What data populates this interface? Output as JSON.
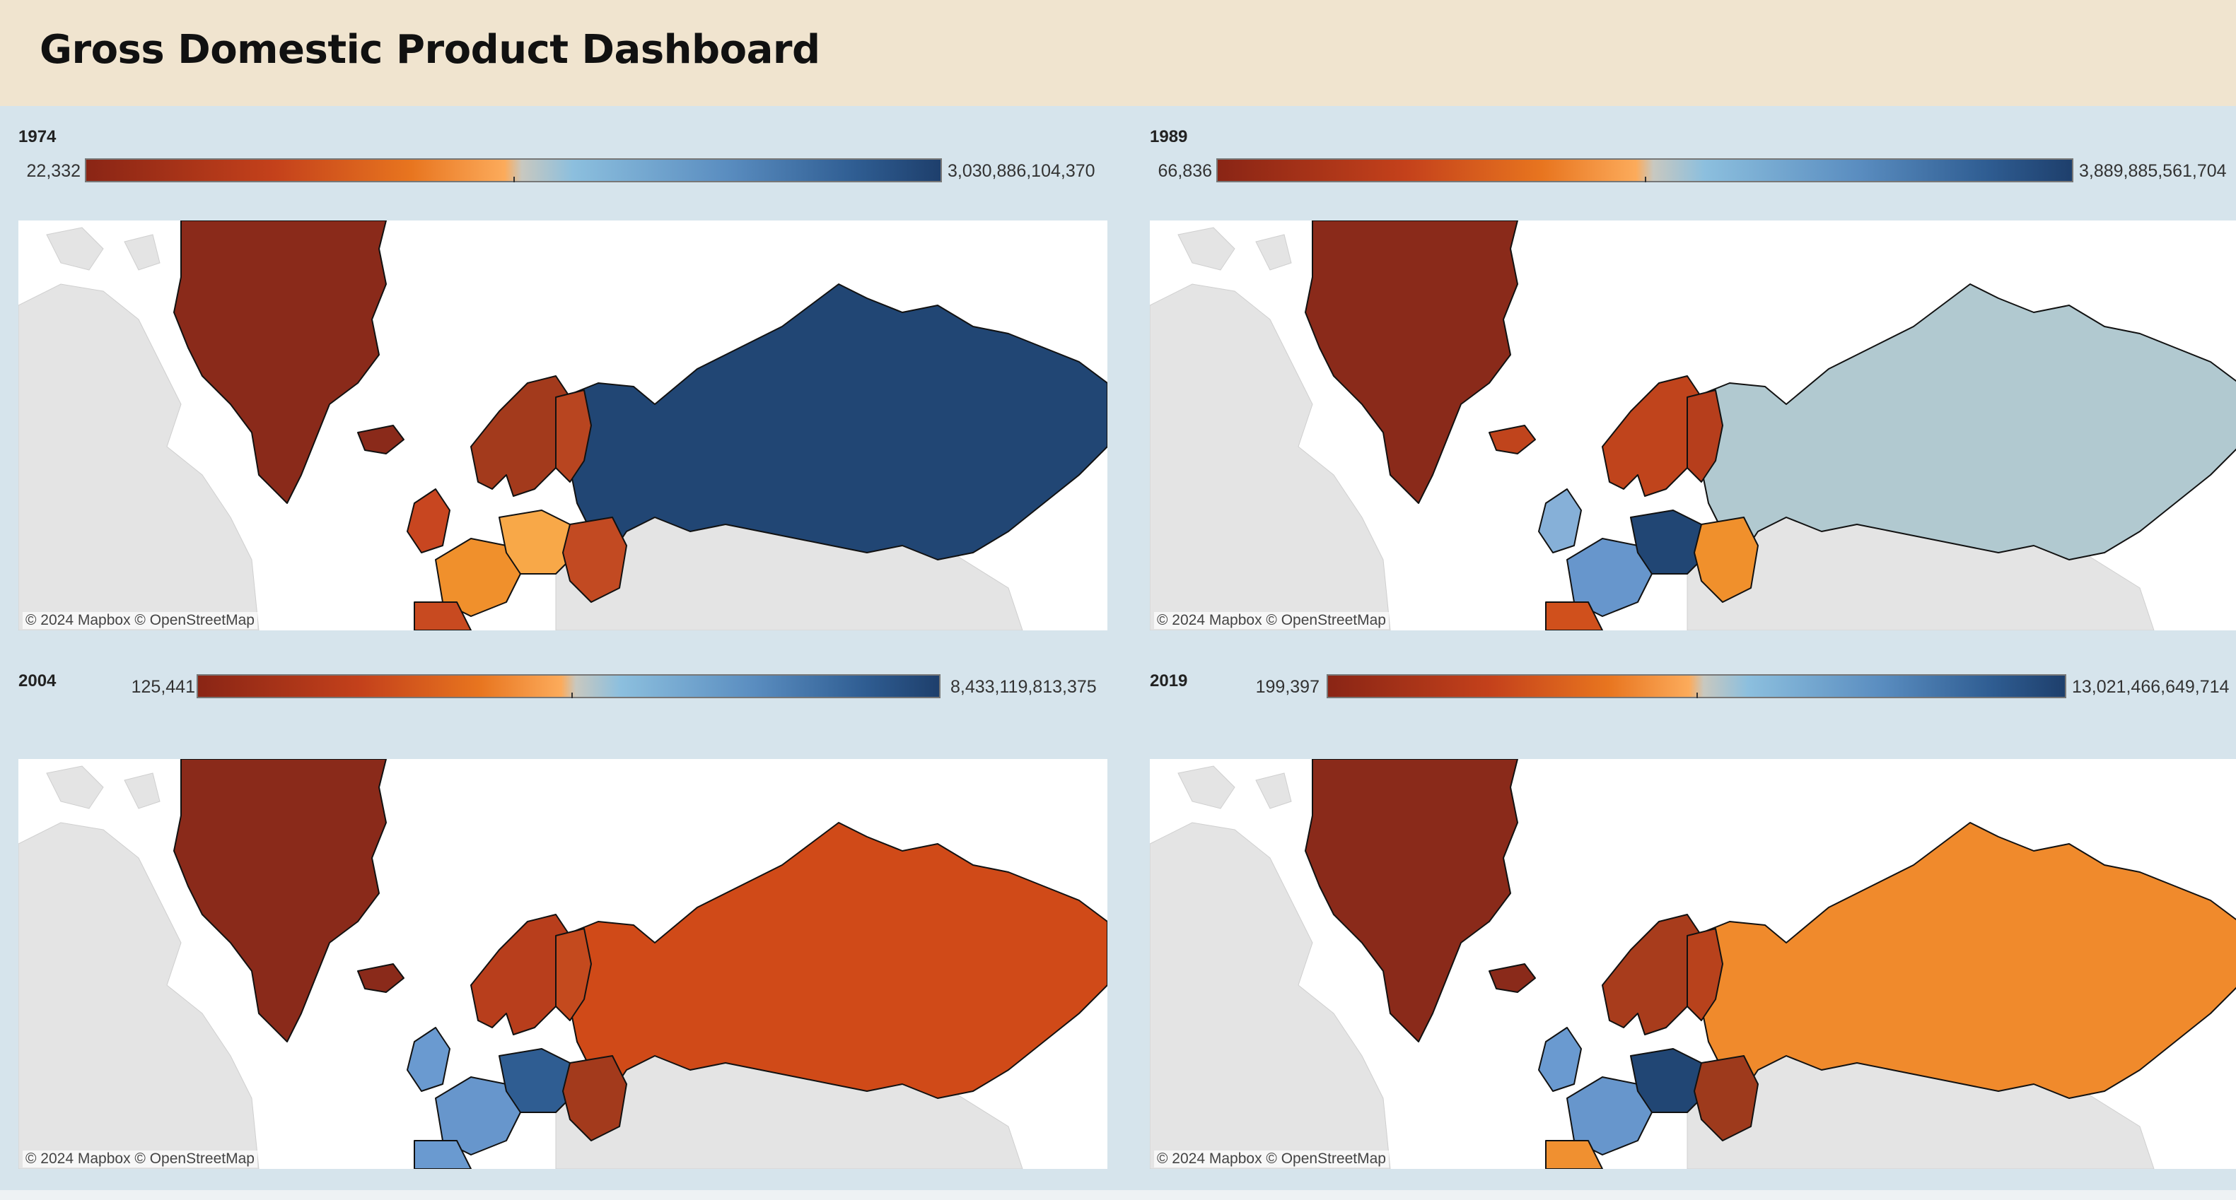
{
  "header": {
    "title": "Gross Domestic Product Dashboard"
  },
  "attribution": "© 2024 Mapbox  © OpenStreetMap",
  "legend_colors": [
    "#8a2515",
    "#c4411b",
    "#e8751f",
    "#fcab5b",
    "#c8c8c0",
    "#8cbfde",
    "#5a8dc0",
    "#2f5d92",
    "#1e3f6c"
  ],
  "panels": [
    {
      "year": "1974",
      "legend_min": "22,332",
      "legend_max": "3,030,886,104,370",
      "colors": {
        "greenland": "#8a2a1a",
        "russia": "#214674",
        "scandinavia": "#a33a1c",
        "finland": "#b84520",
        "western_europe": "#f0902c",
        "central_europe": "#f8a848",
        "eastern_europe": "#c24a22",
        "uk": "#c84620",
        "iberia": "#c84a20",
        "iceland": "#8a2a1a"
      }
    },
    {
      "year": "1989",
      "legend_min": "66,836",
      "legend_max": "3,889,885,561,704",
      "colors": {
        "greenland": "#8a2a1a",
        "russia": "#b1c9d0",
        "scandinavia": "#c0441c",
        "finland": "#b63e1c",
        "western_europe": "#6796cc",
        "central_europe": "#214674",
        "eastern_europe": "#f0902c",
        "uk": "#86b0d8",
        "iberia": "#d0501c",
        "iceland": "#c0441c"
      }
    },
    {
      "year": "2004",
      "legend_min": "125,441",
      "legend_max": "8,433,119,813,375",
      "colors": {
        "greenland": "#8a2a1a",
        "russia": "#d04a18",
        "scandinavia": "#b83e1c",
        "finland": "#c44a1e",
        "western_europe": "#6796cc",
        "central_europe": "#2f5d92",
        "eastern_europe": "#a33a1c",
        "uk": "#6a9ad0",
        "iberia": "#6a9ad0",
        "iceland": "#8a2a1a"
      }
    },
    {
      "year": "2019",
      "legend_min": "199,397",
      "legend_max": "13,021,466,649,714",
      "colors": {
        "greenland": "#8a2a1a",
        "russia": "#f08a2c",
        "scandinavia": "#a83c1c",
        "finland": "#b8421c",
        "western_europe": "#6796cc",
        "central_europe": "#214674",
        "eastern_europe": "#9e3a1c",
        "uk": "#6a9ad0",
        "iberia": "#f09030",
        "iceland": "#8a2a1a"
      }
    }
  ]
}
